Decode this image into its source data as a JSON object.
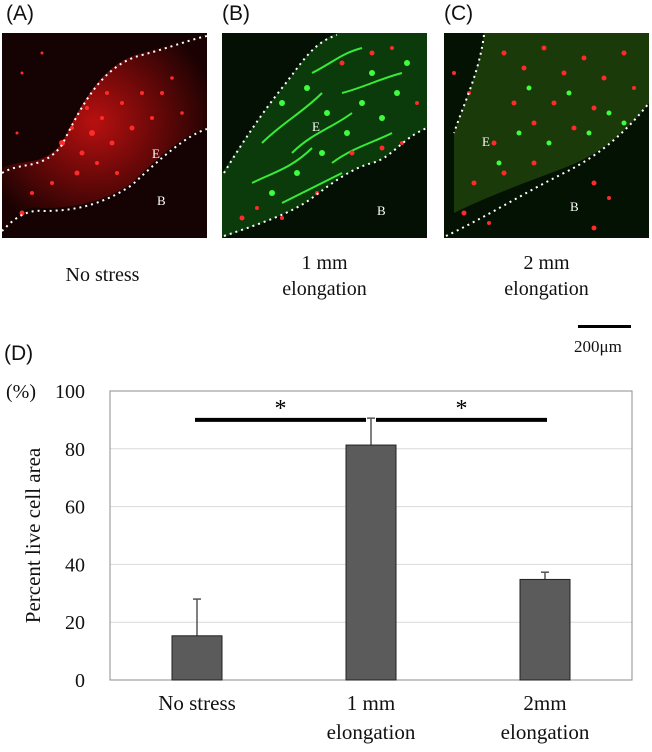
{
  "panels": [
    {
      "letter": "(A)",
      "caption": "No stress",
      "region_upper": "E",
      "region_lower": "B"
    },
    {
      "letter": "(B)",
      "caption": "1 mm\nelongation",
      "region_upper": "E",
      "region_lower": "B"
    },
    {
      "letter": "(C)",
      "caption": "2 mm\nelongation",
      "region_upper": "E",
      "region_lower": "B"
    }
  ],
  "scale_bar": {
    "label": "200μm"
  },
  "chart_panel_letter": "(D)",
  "colors": {
    "bar": "#5b5b5b",
    "live_stain": "#2bd62b",
    "dead_stain": "#ff2020",
    "background": "#050505"
  },
  "chart_data": {
    "type": "bar",
    "categories": [
      "No stress",
      "1 mm\nelongation",
      "2mm\nelongation"
    ],
    "values": [
      15.3,
      81.3,
      34.8
    ],
    "errors": [
      12.7,
      9.3,
      2.5
    ],
    "ylabel": "Percent live cell area",
    "yunit": "(%)",
    "ylim": [
      0,
      100
    ],
    "yticks": [
      0,
      20,
      40,
      60,
      80,
      100
    ],
    "grid": true,
    "significance": [
      {
        "from": 0,
        "to": 1,
        "label": "*"
      },
      {
        "from": 1,
        "to": 2,
        "label": "*"
      }
    ]
  }
}
